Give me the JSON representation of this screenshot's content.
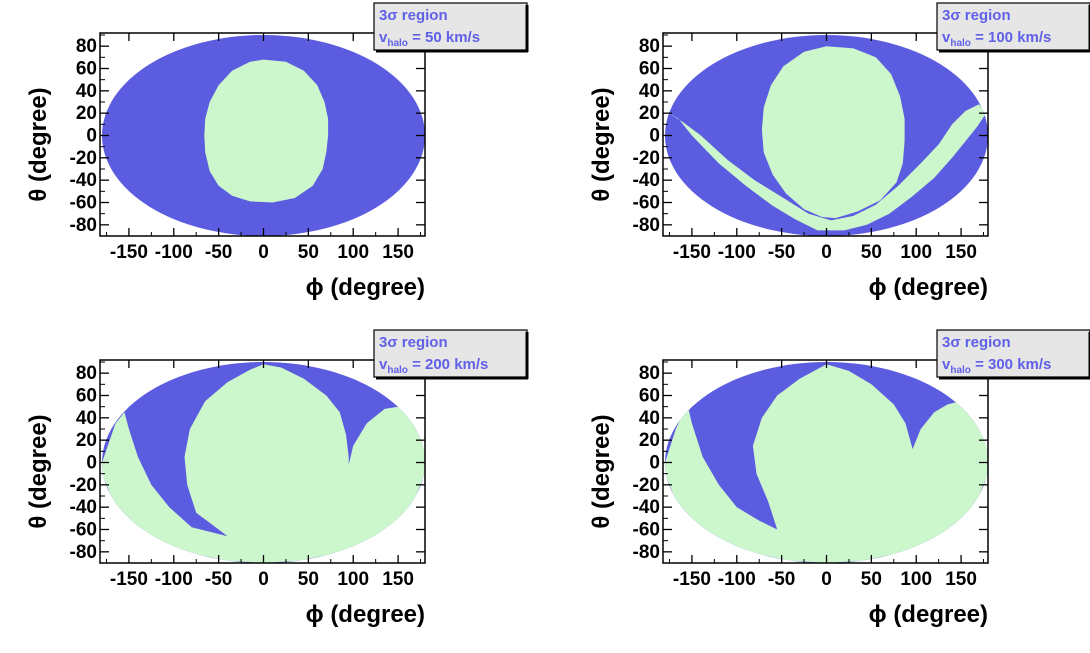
{
  "colors": {
    "excluded": "#5c5ce0",
    "allowed": "#ccf7cc",
    "frame": "#000000",
    "legend_bg": "#e6e6e6",
    "legend_text": "#6060e8"
  },
  "chart_data": [
    {
      "type": "area",
      "projection": "sky map (elliptical)",
      "legend": {
        "line1": "3σ region",
        "line2_prefix": "v",
        "line2_sub": "halo",
        "line2_suffix": " = 50 km/s",
        "placement": "top-right"
      },
      "xlabel": "ϕ (degree)",
      "ylabel": "θ (degree)",
      "xlim": [
        -180,
        180
      ],
      "ylim": [
        -90,
        90
      ],
      "xticks": [
        "-150",
        "-100",
        "-50",
        "0",
        "50",
        "100",
        "150"
      ],
      "yticks": [
        "80",
        "60",
        "40",
        "20",
        "0",
        "-20",
        "-40",
        "-60",
        "-80"
      ],
      "series": [
        {
          "values": [
            [
              0,
              68
            ],
            [
              25,
              66
            ],
            [
              45,
              58
            ],
            [
              60,
              45
            ],
            [
              68,
              30
            ],
            [
              72,
              15
            ],
            [
              72,
              0
            ],
            [
              70,
              -15
            ],
            [
              66,
              -30
            ],
            [
              55,
              -45
            ],
            [
              35,
              -56
            ],
            [
              10,
              -60
            ],
            [
              -15,
              -59
            ],
            [
              -35,
              -54
            ],
            [
              -50,
              -45
            ],
            [
              -60,
              -32
            ],
            [
              -65,
              -15
            ],
            [
              -66,
              0
            ],
            [
              -65,
              15
            ],
            [
              -60,
              30
            ],
            [
              -50,
              45
            ],
            [
              -35,
              58
            ],
            [
              -15,
              66
            ],
            [
              0,
              68
            ]
          ]
        }
      ]
    },
    {
      "type": "area",
      "projection": "sky map (elliptical)",
      "legend": {
        "line1": "3σ region",
        "line2_prefix": "v",
        "line2_sub": "halo",
        "line2_suffix": " = 100 km/s",
        "placement": "top-right"
      },
      "xlabel": "ϕ (degree)",
      "ylabel": "θ (degree)",
      "xlim": [
        -180,
        180
      ],
      "ylim": [
        -90,
        90
      ],
      "xticks": [
        "-150",
        "-100",
        "-50",
        "0",
        "50",
        "100",
        "150"
      ],
      "yticks": [
        "80",
        "60",
        "40",
        "20",
        "0",
        "-20",
        "-40",
        "-60",
        "-80"
      ],
      "series": [
        {
          "values": [
            [
              0,
              80
            ],
            [
              30,
              78
            ],
            [
              55,
              70
            ],
            [
              72,
              55
            ],
            [
              82,
              35
            ],
            [
              87,
              15
            ],
            [
              87,
              -5
            ],
            [
              85,
              -25
            ],
            [
              78,
              -42
            ],
            [
              60,
              -58
            ],
            [
              35,
              -68
            ],
            [
              10,
              -74
            ],
            [
              -5,
              -73
            ],
            [
              -25,
              -66
            ],
            [
              -45,
              -52
            ],
            [
              -60,
              -35
            ],
            [
              -70,
              -15
            ],
            [
              -72,
              5
            ],
            [
              -70,
              25
            ],
            [
              -62,
              45
            ],
            [
              -48,
              62
            ],
            [
              -25,
              75
            ],
            [
              0,
              80
            ]
          ]
        },
        {
          "values": [
            [
              -180,
              22
            ],
            [
              -165,
              15
            ],
            [
              -150,
              0
            ],
            [
              -120,
              -25
            ],
            [
              -90,
              -45
            ],
            [
              -60,
              -63
            ],
            [
              -35,
              -75
            ],
            [
              -10,
              -85
            ],
            [
              20,
              -85
            ],
            [
              45,
              -80
            ],
            [
              70,
              -70
            ],
            [
              95,
              -55
            ],
            [
              120,
              -38
            ],
            [
              140,
              -20
            ],
            [
              155,
              -5
            ],
            [
              168,
              8
            ],
            [
              178,
              20
            ],
            [
              170,
              28
            ],
            [
              155,
              22
            ],
            [
              140,
              10
            ],
            [
              125,
              -8
            ],
            [
              105,
              -25
            ],
            [
              80,
              -45
            ],
            [
              55,
              -62
            ],
            [
              30,
              -72
            ],
            [
              5,
              -76
            ],
            [
              -20,
              -70
            ],
            [
              -50,
              -55
            ],
            [
              -80,
              -40
            ],
            [
              -110,
              -22
            ],
            [
              -140,
              0
            ],
            [
              -160,
              12
            ],
            [
              -180,
              22
            ]
          ]
        }
      ]
    },
    {
      "type": "area",
      "projection": "sky map (elliptical)",
      "legend": {
        "line1": "3σ region",
        "line2_prefix": "v",
        "line2_sub": "halo",
        "line2_suffix": " = 200 km/s",
        "placement": "top-right"
      },
      "xlabel": "ϕ (degree)",
      "ylabel": "θ (degree)",
      "xlim": [
        -180,
        180
      ],
      "ylim": [
        -90,
        90
      ],
      "xticks": [
        "-150",
        "-100",
        "-50",
        "0",
        "50",
        "100",
        "150"
      ],
      "yticks": [
        "80",
        "60",
        "40",
        "20",
        "0",
        "-20",
        "-40",
        "-60",
        "-80"
      ],
      "series": [
        {
          "values": [
            [
              -180,
              0
            ],
            [
              -165,
              35
            ],
            [
              -155,
              45
            ],
            [
              -150,
              30
            ],
            [
              -140,
              5
            ],
            [
              -125,
              -20
            ],
            [
              -105,
              -40
            ],
            [
              -80,
              -58
            ],
            [
              -40,
              -66
            ],
            [
              -75,
              -45
            ],
            [
              -85,
              -20
            ],
            [
              -88,
              5
            ],
            [
              -82,
              30
            ],
            [
              -65,
              55
            ],
            [
              -40,
              72
            ],
            [
              -15,
              83
            ],
            [
              0,
              88
            ],
            [
              20,
              85
            ],
            [
              45,
              75
            ],
            [
              70,
              60
            ],
            [
              85,
              45
            ],
            [
              92,
              25
            ],
            [
              95,
              5
            ],
            [
              95,
              -2
            ],
            [
              100,
              15
            ],
            [
              115,
              35
            ],
            [
              135,
              48
            ],
            [
              150,
              50
            ],
            [
              170,
              35
            ],
            [
              180,
              10
            ],
            [
              180,
              -10
            ],
            [
              165,
              -40
            ],
            [
              140,
              -60
            ],
            [
              100,
              -78
            ],
            [
              40,
              -88
            ],
            [
              0,
              -90
            ],
            [
              -40,
              -88
            ],
            [
              -100,
              -78
            ],
            [
              -140,
              -60
            ],
            [
              -165,
              -40
            ],
            [
              -180,
              -10
            ],
            [
              -180,
              0
            ]
          ]
        }
      ]
    },
    {
      "type": "area",
      "projection": "sky map (elliptical)",
      "legend": {
        "line1": "3σ region",
        "line2_prefix": "v",
        "line2_sub": "halo",
        "line2_suffix": " = 300 km/s",
        "placement": "top-right"
      },
      "xlabel": "ϕ (degree)",
      "ylabel": "θ (degree)",
      "xlim": [
        -180,
        180
      ],
      "ylim": [
        -90,
        90
      ],
      "xticks": [
        "-150",
        "-100",
        "-50",
        "0",
        "50",
        "100",
        "150"
      ],
      "yticks": [
        "80",
        "60",
        "40",
        "20",
        "0",
        "-20",
        "-40",
        "-60",
        "-80"
      ],
      "series": [
        {
          "values": [
            [
              -180,
              0
            ],
            [
              -168,
              30
            ],
            [
              -155,
              52
            ],
            [
              -150,
              35
            ],
            [
              -138,
              5
            ],
            [
              -120,
              -20
            ],
            [
              -100,
              -40
            ],
            [
              -75,
              -52
            ],
            [
              -55,
              -60
            ],
            [
              -65,
              -35
            ],
            [
              -78,
              -10
            ],
            [
              -82,
              15
            ],
            [
              -72,
              40
            ],
            [
              -55,
              60
            ],
            [
              -30,
              75
            ],
            [
              0,
              88
            ],
            [
              25,
              82
            ],
            [
              50,
              70
            ],
            [
              75,
              52
            ],
            [
              88,
              35
            ],
            [
              95,
              15
            ],
            [
              96,
              12
            ],
            [
              105,
              30
            ],
            [
              120,
              45
            ],
            [
              135,
              52
            ],
            [
              150,
              55
            ],
            [
              168,
              40
            ],
            [
              180,
              10
            ],
            [
              180,
              -10
            ],
            [
              165,
              -40
            ],
            [
              140,
              -60
            ],
            [
              100,
              -78
            ],
            [
              40,
              -88
            ],
            [
              0,
              -90
            ],
            [
              -40,
              -88
            ],
            [
              -100,
              -78
            ],
            [
              -140,
              -60
            ],
            [
              -165,
              -40
            ],
            [
              -180,
              -10
            ],
            [
              -180,
              0
            ]
          ]
        }
      ]
    }
  ]
}
